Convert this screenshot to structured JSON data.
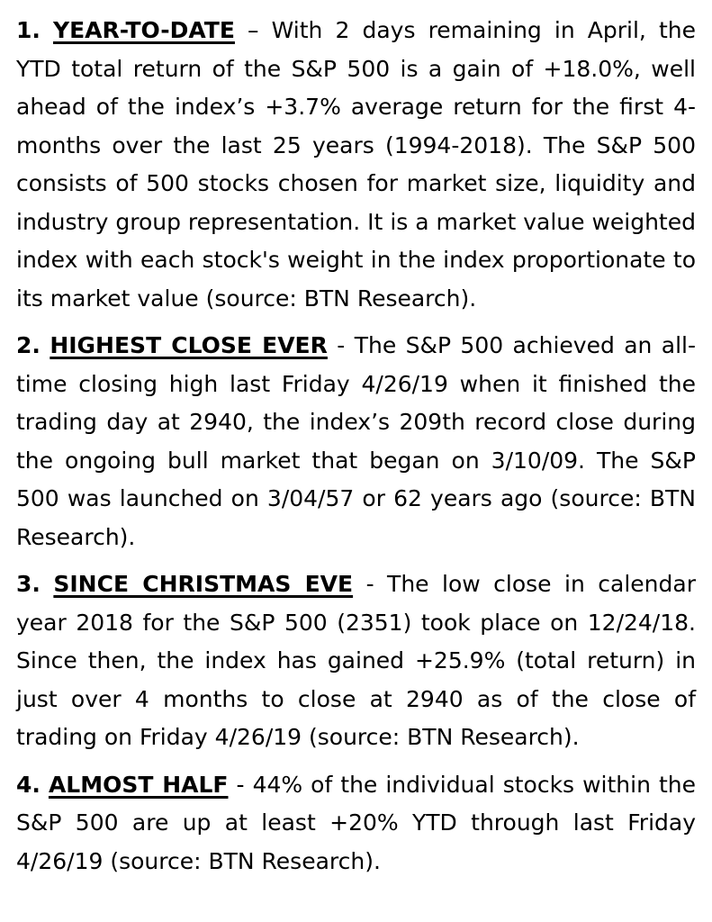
{
  "page": {
    "background_color": "#ffffff",
    "text_color": "#000000"
  },
  "paragraphs": [
    {
      "number": "1.",
      "heading": "YEAR-TO-DATE",
      "body": "– With 2 days remaining in April, the YTD total return of the S&P 500 is a gain of +18.0%, well ahead of the index’s +3.7% average return for the first 4-months over the last 25 years (1994-2018). The S&P 500 consists of 500 stocks chosen for market size, liquidity and industry group representation. It is a market value weighted index with each stock's weight in the index proportionate to its market value (source: BTN Research)."
    },
    {
      "number": "2.",
      "heading": "HIGHEST CLOSE EVER",
      "body": "- The S&P 500 achieved an all-time closing high last Friday 4/26/19 when it finished the trading day at 2940, the index’s 209th record close during the ongoing bull market that began on 3/10/09. The S&P 500 was launched on 3/04/57 or 62 years ago (source: BTN Research)."
    },
    {
      "number": "3.",
      "heading": "SINCE CHRISTMAS EVE",
      "body": "- The low close in calendar year 2018 for the S&P 500 (2351) took place on 12/24/18. Since then, the index has gained +25.9% (total return) in just over 4 months to close at 2940 as of the close of trading on Friday 4/26/19 (source: BTN Research)."
    },
    {
      "number": "4.",
      "heading": "ALMOST HALF",
      "body": "- 44% of the individual stocks within the S&P 500 are up at least +20% YTD through last Friday 4/26/19 (source: BTN Research)."
    }
  ]
}
